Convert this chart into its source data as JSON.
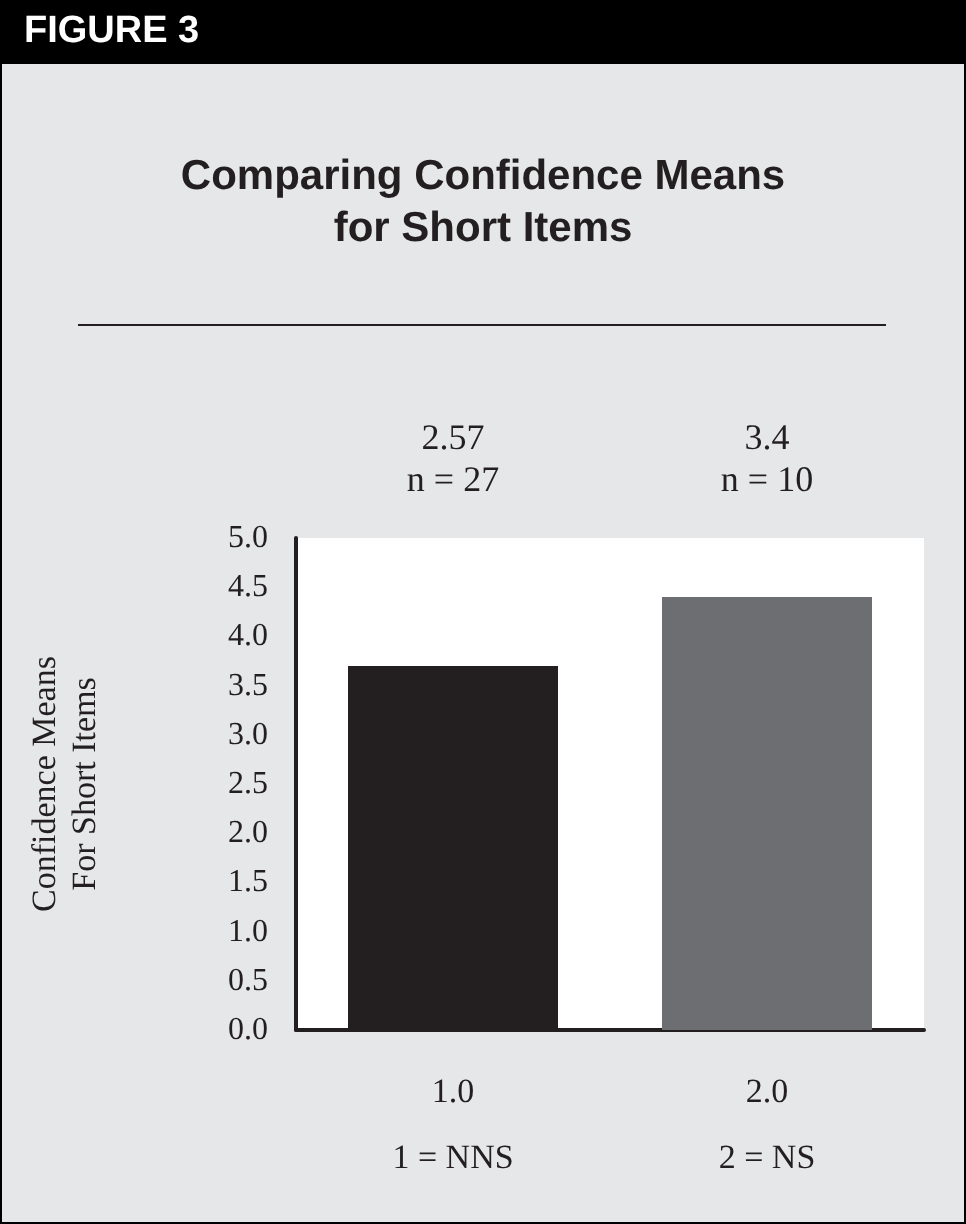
{
  "chart_data": {
    "type": "bar",
    "title": "Comparing Confidence Means\nfor Short Items",
    "ylabel": "Confidence Means\nFor Short Items",
    "categories": [
      "1.0\n1 = NNS",
      "2.0\n2 = NS"
    ],
    "values": [
      3.7,
      4.4
    ],
    "colors": [
      "#231f20",
      "#6d6e71"
    ],
    "ylim": [
      0,
      5
    ],
    "yticks": [
      {
        "value": 0,
        "label": "0.0"
      },
      {
        "value": 0.5,
        "label": "0.5"
      },
      {
        "value": 1,
        "label": "1.0"
      },
      {
        "value": 1.5,
        "label": "1.5"
      },
      {
        "value": 2,
        "label": "2.0"
      },
      {
        "value": 2.5,
        "label": "2.5"
      },
      {
        "value": 3,
        "label": "3.0"
      },
      {
        "value": 3.5,
        "label": "3.5"
      },
      {
        "value": 4,
        "label": "4.0"
      },
      {
        "value": 4.5,
        "label": "4.5"
      },
      {
        "value": 5,
        "label": "5.0"
      }
    ],
    "grid": false,
    "annotations": [
      "FIGURE 3",
      "2.57\nn = 27",
      "3.4\nn = 10"
    ]
  }
}
